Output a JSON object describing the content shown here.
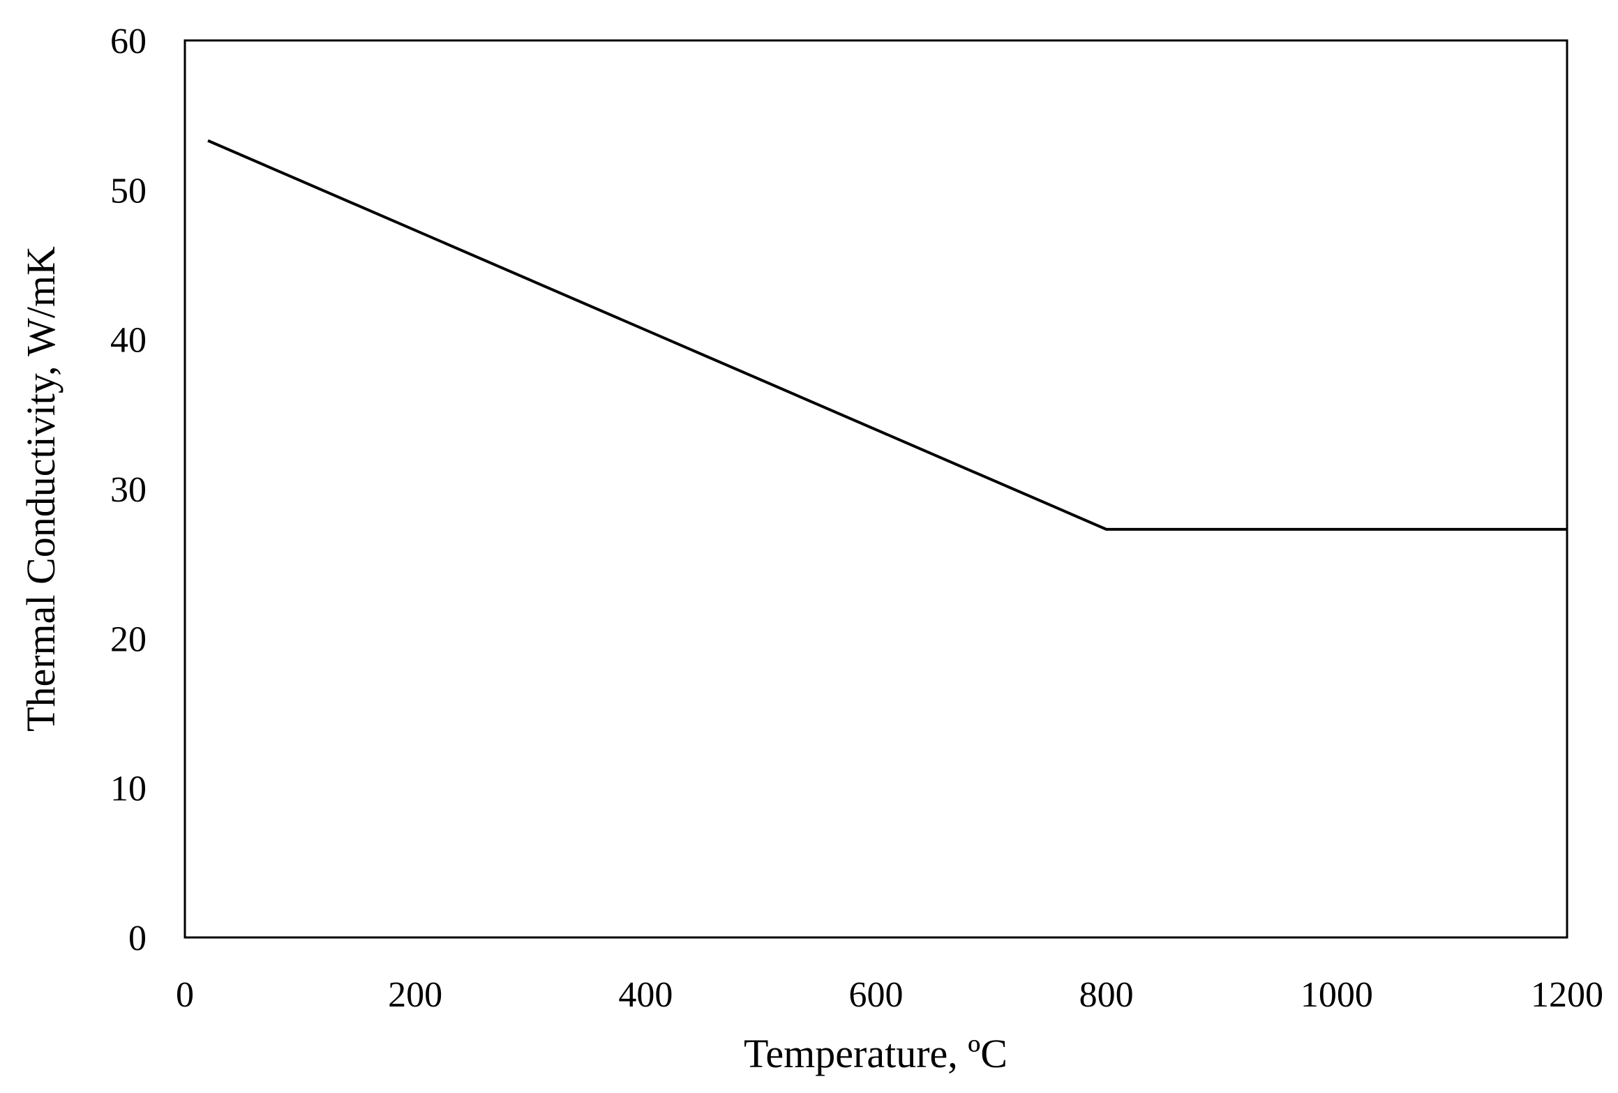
{
  "chart_data": {
    "type": "line",
    "title": "",
    "xlabel": "Temperature, ºC",
    "ylabel": "Thermal Conductivity, W/mK",
    "xlim": [
      0,
      1200
    ],
    "ylim": [
      0,
      60
    ],
    "x_ticks": [
      0,
      200,
      400,
      600,
      800,
      1000,
      1200
    ],
    "y_ticks": [
      0,
      10,
      20,
      30,
      40,
      50,
      60
    ],
    "x_tick_labels": [
      "0",
      "200",
      "400",
      "600",
      "800",
      "1000",
      "1200"
    ],
    "y_tick_labels": [
      "0",
      "10",
      "20",
      "30",
      "40",
      "50",
      "60"
    ],
    "grid": false,
    "legend": "none",
    "series": [
      {
        "color": "#000000",
        "x": [
          20,
          800,
          1200
        ],
        "y": [
          53.3,
          27.3,
          27.3
        ]
      }
    ]
  }
}
